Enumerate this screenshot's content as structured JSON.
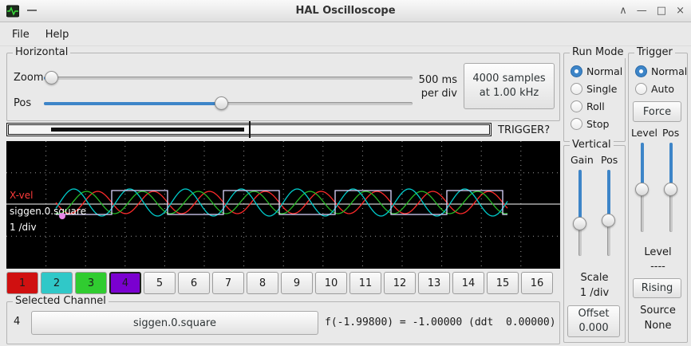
{
  "window": {
    "title": "HAL Oscilloscope",
    "controls": [
      {
        "name": "shade",
        "glyph": "∧"
      },
      {
        "name": "minimize",
        "glyph": "—"
      },
      {
        "name": "maximize",
        "glyph": "□"
      },
      {
        "name": "close",
        "glyph": "×"
      }
    ]
  },
  "menu": {
    "items": [
      {
        "label": "File"
      },
      {
        "label": "Help"
      }
    ]
  },
  "horizontal": {
    "label": "Horizontal",
    "zoom_label": "Zoom",
    "pos_label": "Pos",
    "zoom_value": 2,
    "pos_value": 48,
    "rate_text": [
      "500 ms",
      "per div"
    ],
    "samples_button": [
      "4000 samples",
      "at 1.00 kHz"
    ]
  },
  "record_bar": {
    "fill_start_pct": 9,
    "fill_end_pct": 49,
    "tick_pct": 50,
    "trigger_label": "TRIGGER?"
  },
  "run_mode": {
    "label": "Run Mode",
    "options": [
      {
        "label": "Normal",
        "selected": true
      },
      {
        "label": "Single",
        "selected": false
      },
      {
        "label": "Roll",
        "selected": false
      },
      {
        "label": "Stop",
        "selected": false
      }
    ]
  },
  "trigger": {
    "label": "Trigger",
    "options": [
      {
        "label": "Normal",
        "selected": true
      },
      {
        "label": "Auto",
        "selected": false
      }
    ],
    "force_button": "Force",
    "level_label": "Level",
    "pos_label": "Pos",
    "level_value": 52,
    "pos_value": 52,
    "level_caption": "Level",
    "level_readout": "----",
    "edge_button": "Rising",
    "source_label": "Source",
    "source_value": "None"
  },
  "vertical": {
    "label": "Vertical",
    "gain_label": "Gain",
    "pos_label": "Pos",
    "gain_value": 62,
    "pos_value": 58,
    "scale_label": "Scale",
    "scale_value": "1 /div",
    "offset_button": [
      "Offset",
      "0.000"
    ]
  },
  "scope": {
    "baseline_color": "#ffffff",
    "marker_color": "#e887e8",
    "labels": [
      {
        "text": "X-vel",
        "color": "#ff3b3b"
      },
      {
        "text": "siggen.0.square",
        "color": "#ffffff"
      },
      {
        "text": "1 /div",
        "color": "#ffffff"
      }
    ],
    "waveforms": [
      {
        "type": "sine",
        "color": "#ff2a2a",
        "amplitude": 14,
        "period": 70,
        "phase": 0
      },
      {
        "type": "sine",
        "color": "#27b927",
        "amplitude": 14,
        "period": 70,
        "phase": 14
      },
      {
        "type": "sine",
        "color": "#00cccc",
        "amplitude": 17,
        "period": 70,
        "phase": 30
      },
      {
        "type": "square",
        "color": "#dcd6ff",
        "high": -17,
        "low": 13,
        "half_period": 70,
        "start_high": false
      }
    ]
  },
  "channels": {
    "buttons": [
      {
        "num": "1",
        "color": "#d01010"
      },
      {
        "num": "2",
        "color": "#30c8c8"
      },
      {
        "num": "3",
        "color": "#30cc30"
      },
      {
        "num": "4",
        "color": "#7a00d0",
        "selected": true
      },
      {
        "num": "5"
      },
      {
        "num": "6"
      },
      {
        "num": "7"
      },
      {
        "num": "8"
      },
      {
        "num": "9"
      },
      {
        "num": "10"
      },
      {
        "num": "11"
      },
      {
        "num": "12"
      },
      {
        "num": "13"
      },
      {
        "num": "14"
      },
      {
        "num": "15"
      },
      {
        "num": "16"
      }
    ]
  },
  "selected_channel": {
    "label": "Selected Channel",
    "number": "4",
    "name_button": "siggen.0.square",
    "readout": "f(-1.99800) = -1.00000 (ddt  0.00000)"
  }
}
